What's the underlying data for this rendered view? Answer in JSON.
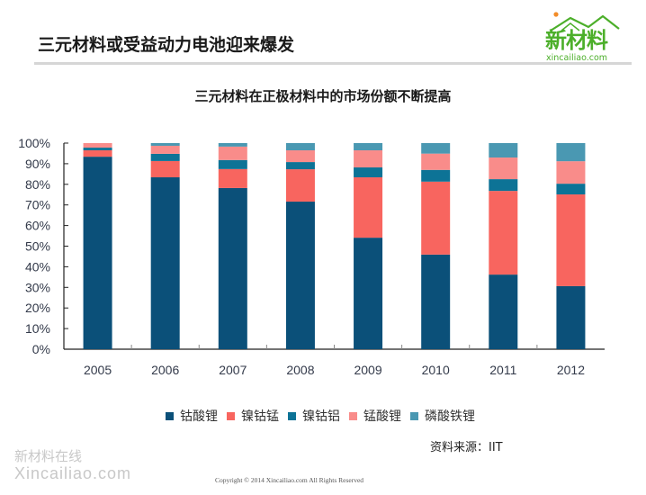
{
  "slide": {
    "title": "三元材料或受益动力电池迎来爆发",
    "logo_cn": "新材料",
    "logo_en": "xincailiao.com"
  },
  "chart_data": {
    "type": "bar",
    "stacked": true,
    "title": "三元材料在正极材料中的市场份额不断提高",
    "xlabel": "",
    "ylabel": "",
    "ylim": [
      0,
      100
    ],
    "yticks": [
      "0%",
      "10%",
      "20%",
      "30%",
      "40%",
      "50%",
      "60%",
      "70%",
      "80%",
      "90%",
      "100%"
    ],
    "categories": [
      "2005",
      "2006",
      "2007",
      "2008",
      "2009",
      "2010",
      "2011",
      "2012"
    ],
    "series": [
      {
        "name": "钴酸锂",
        "color": "#0b5079",
        "values": [
          93.4,
          83.4,
          78.2,
          71.6,
          54.1,
          45.9,
          36.2,
          30.6
        ]
      },
      {
        "name": "镍钴锰",
        "color": "#f8655f",
        "values": [
          3.1,
          7.9,
          9.2,
          15.7,
          29.3,
          35.4,
          40.6,
          44.5
        ]
      },
      {
        "name": "镍钴铝",
        "color": "#0d7396",
        "values": [
          1.3,
          3.5,
          4.4,
          3.5,
          4.8,
          5.7,
          5.7,
          5.2
        ]
      },
      {
        "name": "锰酸锂",
        "color": "#f98c8a",
        "values": [
          2.2,
          3.9,
          6.5,
          5.7,
          8.3,
          7.9,
          10.5,
          10.9
        ]
      },
      {
        "name": "磷酸铁锂",
        "color": "#4a98b2",
        "values": [
          0.0,
          1.3,
          1.7,
          3.5,
          3.5,
          5.1,
          7.0,
          8.8
        ]
      }
    ],
    "legend_position": "bottom",
    "grid": false
  },
  "footer": {
    "source": "资料来源：IIT",
    "watermark_cn": "新材料在线",
    "watermark_en": "Xincailiao.com",
    "copyright": "Copyright © 2014   Xincailiao.com    All Rights Reserved"
  }
}
